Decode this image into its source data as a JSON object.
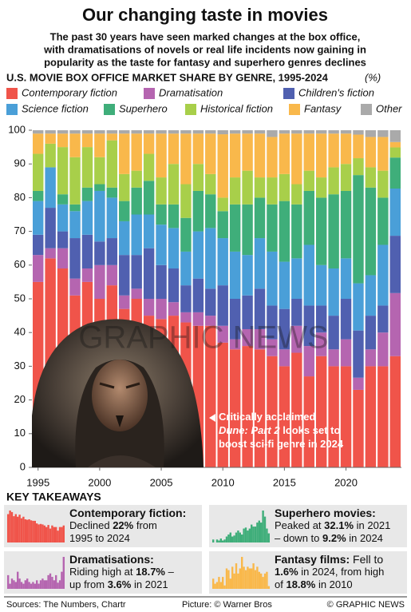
{
  "chart_data": {
    "type": "stacked-bar",
    "title": "Our changing taste in movies",
    "subtitle": [
      "The past 30 years have seen marked changes at the box office,",
      "with dramatisations of novels or real life incidents now gaining in",
      "popularity as the taste for fantasy and superhero genres declines"
    ],
    "heading": "U.S. MOVIE BOX OFFICE MARKET SHARE BY GENRE, 1995-2024",
    "unit": "(%)",
    "x": [
      1995,
      1996,
      1997,
      1998,
      1999,
      2000,
      2001,
      2002,
      2003,
      2004,
      2005,
      2006,
      2007,
      2008,
      2009,
      2010,
      2011,
      2012,
      2013,
      2014,
      2015,
      2016,
      2017,
      2018,
      2019,
      2020,
      2021,
      2022,
      2023,
      2024
    ],
    "xlim": [
      1994.5,
      2024.5
    ],
    "xticks": [
      1995,
      2000,
      2005,
      2010,
      2015,
      2020
    ],
    "ylim": [
      0,
      100
    ],
    "yticks": [
      0,
      10,
      20,
      30,
      40,
      50,
      60,
      70,
      80,
      90,
      100
    ],
    "series": [
      {
        "name": "Contemporary fiction",
        "color": "#f0544a",
        "values": [
          55,
          62,
          59,
          51,
          55,
          50,
          54,
          47,
          50,
          45,
          44,
          45,
          43,
          42,
          42,
          37,
          35,
          36,
          35,
          33,
          30,
          34,
          27,
          33,
          30,
          30,
          23,
          30,
          30,
          33
        ]
      },
      {
        "name": "Dramatisation",
        "color": "#b565b0",
        "values": [
          8,
          3,
          6,
          5,
          4,
          10,
          6,
          4,
          3,
          5,
          6,
          4,
          3,
          4,
          3,
          5,
          3,
          5,
          6,
          5,
          5,
          8,
          9,
          7,
          5,
          8,
          3.6,
          5,
          10,
          18.7
        ]
      },
      {
        "name": "Children's fiction",
        "color": "#5060b0",
        "values": [
          6,
          12,
          5,
          12,
          10,
          7,
          8,
          12,
          10,
          15,
          10,
          10,
          8,
          10,
          8,
          12,
          12,
          10,
          12,
          10,
          12,
          8,
          12,
          8,
          10,
          12,
          14,
          10,
          8,
          17
        ]
      },
      {
        "name": "Science fiction",
        "color": "#4a9fd8",
        "values": [
          10,
          12,
          8,
          8,
          10,
          15,
          12,
          10,
          12,
          10,
          12,
          12,
          10,
          14,
          18,
          14,
          14,
          12,
          15,
          16,
          14,
          12,
          18,
          12,
          14,
          12,
          14,
          12,
          18,
          14
        ]
      },
      {
        "name": "Superhero",
        "color": "#3fae7a",
        "values": [
          3,
          0,
          3,
          2,
          4,
          2,
          3,
          6,
          8,
          10,
          6,
          7,
          10,
          12,
          10,
          8,
          14,
          15,
          12,
          14,
          18,
          16,
          16,
          20,
          22,
          20,
          32.1,
          26,
          14,
          9.2
        ]
      },
      {
        "name": "Historical fiction",
        "color": "#a8cf4a",
        "values": [
          11,
          7,
          14,
          14,
          12,
          8,
          14,
          8,
          5,
          8,
          8,
          12,
          10,
          8,
          6,
          4,
          8,
          10,
          6,
          8,
          8,
          6,
          6,
          6,
          8,
          8,
          5,
          6,
          8,
          3
        ]
      },
      {
        "name": "Fantasy",
        "color": "#f9b84b",
        "values": [
          6,
          3,
          4,
          7,
          4,
          7,
          2,
          12,
          11,
          6,
          13,
          9,
          15,
          9,
          12,
          18.8,
          13,
          11,
          13,
          12,
          12,
          15,
          11,
          13,
          10,
          9,
          7,
          9,
          10,
          1.6
        ]
      },
      {
        "name": "Other",
        "color": "#aaaaaa",
        "values": [
          1,
          1,
          1,
          1,
          1,
          1,
          1,
          1,
          1,
          1,
          1,
          1,
          1,
          1,
          1,
          1.2,
          1,
          1,
          1,
          2,
          1,
          1,
          1,
          1,
          1,
          1,
          1.3,
          2,
          2,
          3.5
        ]
      }
    ],
    "annotation": [
      [
        {
          "text": "Critically acclaimed"
        }
      ],
      [
        {
          "text": "Dune: Part 2",
          "italic": true
        },
        {
          "text": " looks set to"
        }
      ],
      [
        {
          "text": "boost sci-fi genre in 2024"
        }
      ]
    ],
    "watermark": "GRAPHIC NEWS"
  },
  "takeaways": {
    "heading": "KEY TAKEAWAYS",
    "cards": [
      {
        "lines": [
          [
            {
              "text": "Contemporary fiction:",
              "bold": true
            }
          ],
          [
            {
              "text": "Declined "
            },
            {
              "text": "22%",
              "bold": true
            },
            {
              "text": " from"
            }
          ],
          [
            {
              "text": "1995 to 2024"
            }
          ]
        ]
      },
      {
        "lines": [
          [
            {
              "text": "Superhero movies:",
              "bold": true
            }
          ],
          [
            {
              "text": "Peaked at "
            },
            {
              "text": "32.1%",
              "bold": true
            },
            {
              "text": " in 2021"
            }
          ],
          [
            {
              "text": "– down to "
            },
            {
              "text": "9.2%",
              "bold": true
            },
            {
              "text": " in 2024"
            }
          ]
        ]
      },
      {
        "lines": [
          [
            {
              "text": "Dramatisations:",
              "bold": true
            }
          ],
          [
            {
              "text": "Riding high at "
            },
            {
              "text": "18.7%",
              "bold": true
            },
            {
              "text": " –"
            }
          ],
          [
            {
              "text": "up from "
            },
            {
              "text": "3.6%",
              "bold": true
            },
            {
              "text": " in 2021"
            }
          ]
        ]
      },
      {
        "lines": [
          [
            {
              "text": "Fantasy films:",
              "bold": true
            },
            {
              "text": " Fell to"
            }
          ],
          [
            {
              "text": "1.6%",
              "bold": true
            },
            {
              "text": " in 2024, from high"
            }
          ],
          [
            {
              "text": "of "
            },
            {
              "text": "18.8%",
              "bold": true
            },
            {
              "text": " in 2010"
            }
          ]
        ]
      }
    ]
  },
  "footer": {
    "sources": "Sources: The Numbers, Chartr",
    "picture": "Picture: © Warner Bros",
    "credit": "© GRAPHIC NEWS"
  }
}
